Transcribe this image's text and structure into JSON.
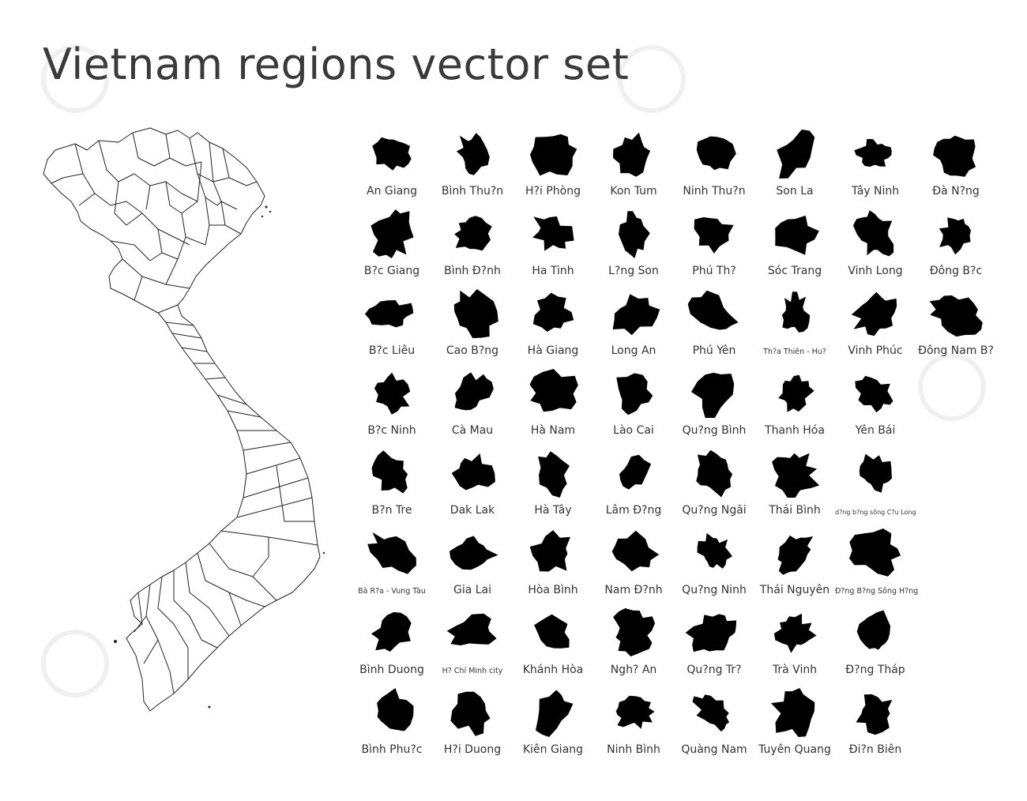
{
  "title": "Vietnam regions vector set",
  "colors": {
    "shape_fill": "#000000",
    "outline": "#222222",
    "label": "#333333",
    "title": "#3a3a3a"
  },
  "regions": [
    "An Giang",
    "Bình Thu?n",
    "H?i Phòng",
    "Kon Tum",
    "Ninh Thu?n",
    "Son La",
    "Tây Ninh",
    "Ðà N?ng",
    "B?c Giang",
    "Bình Ð?nh",
    "Ha Tinh",
    "L?ng Son",
    "Phú Th?",
    "Sóc Trang",
    "Vinh Long",
    "Ðông B?c",
    "B?c Liêu",
    "Cao B?ng",
    "Hà Giang",
    "Long An",
    "Phú Yên",
    "Th?a Thiên - Hu?",
    "Vinh Phúc",
    "Ðông Nam B?",
    "B?c Ninh",
    "Cà Mau",
    "Hà Nam",
    "Lào Cai",
    "Qu?ng Bình",
    "Thanh Hóa",
    "Yên Bái",
    "",
    "B?n Tre",
    "Dak Lak",
    "Hà Tây",
    "Lâm Ð?ng",
    "Qu?ng Ngãi",
    "Thái Bình",
    "d?ng b?ng sông C?u Long",
    "",
    "Bà R?a - Vung Tàu",
    "Gia Lai",
    "Hòa Bình",
    "Nam Ð?nh",
    "Qu?ng Ninh",
    "Thái Nguyên",
    "Ð?ng B?ng Sông H?ng",
    "",
    "Bình Duong",
    "H? Chí Minh city",
    "Khánh Hòa",
    "Ngh? An",
    "Qu?ng Tr?",
    "Trà Vinh",
    "Ð?ng Tháp",
    "",
    "Bình Phu?c",
    "H?i Duong",
    "Kiên Giang",
    "Ninh Bình",
    "Quàng Nam",
    "Tuyên Quang",
    "Ði?n Biên",
    ""
  ]
}
